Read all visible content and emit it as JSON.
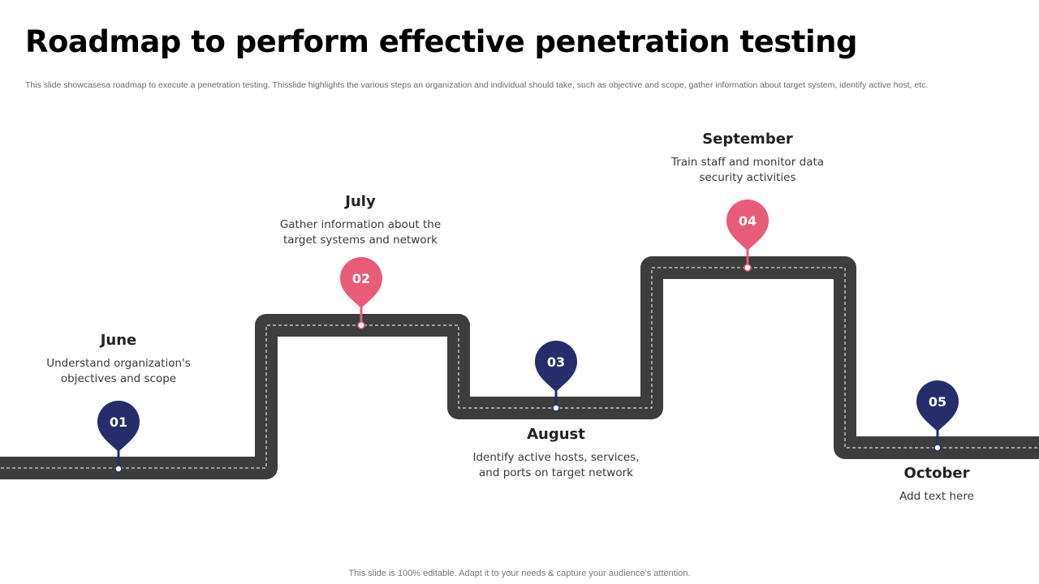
{
  "slide": {
    "title": "Roadmap to perform effective penetration testing",
    "subtitle": "This slide showcasesa roadmap to execute a penetration testing. Thisslide highlights the various steps an organization and individual should take, such as objective and scope, gather information about target system, identify active host, etc.",
    "footer": "This slide is 100% editable. Adapt it to your needs & capture your audience’s attention."
  },
  "colors": {
    "road": "#3d3d3d",
    "navy": "#252e6b",
    "pink": "#e85c78"
  },
  "milestones": [
    {
      "number": "01",
      "month": "June",
      "desc_line1": "Understand organization's",
      "desc_line2": "objectives and scope",
      "color": "navy"
    },
    {
      "number": "02",
      "month": "July",
      "desc_line1": "Gather information about the",
      "desc_line2": "target systems and network",
      "color": "pink"
    },
    {
      "number": "03",
      "month": "August",
      "desc_line1": "Identify active hosts, services,",
      "desc_line2": "and ports on target network",
      "color": "navy"
    },
    {
      "number": "04",
      "month": "September",
      "desc_line1": "Train staff and monitor  data",
      "desc_line2": "security activities",
      "color": "pink"
    },
    {
      "number": "05",
      "month": "October",
      "desc_line1": "Add text here",
      "desc_line2": "",
      "color": "navy"
    }
  ]
}
